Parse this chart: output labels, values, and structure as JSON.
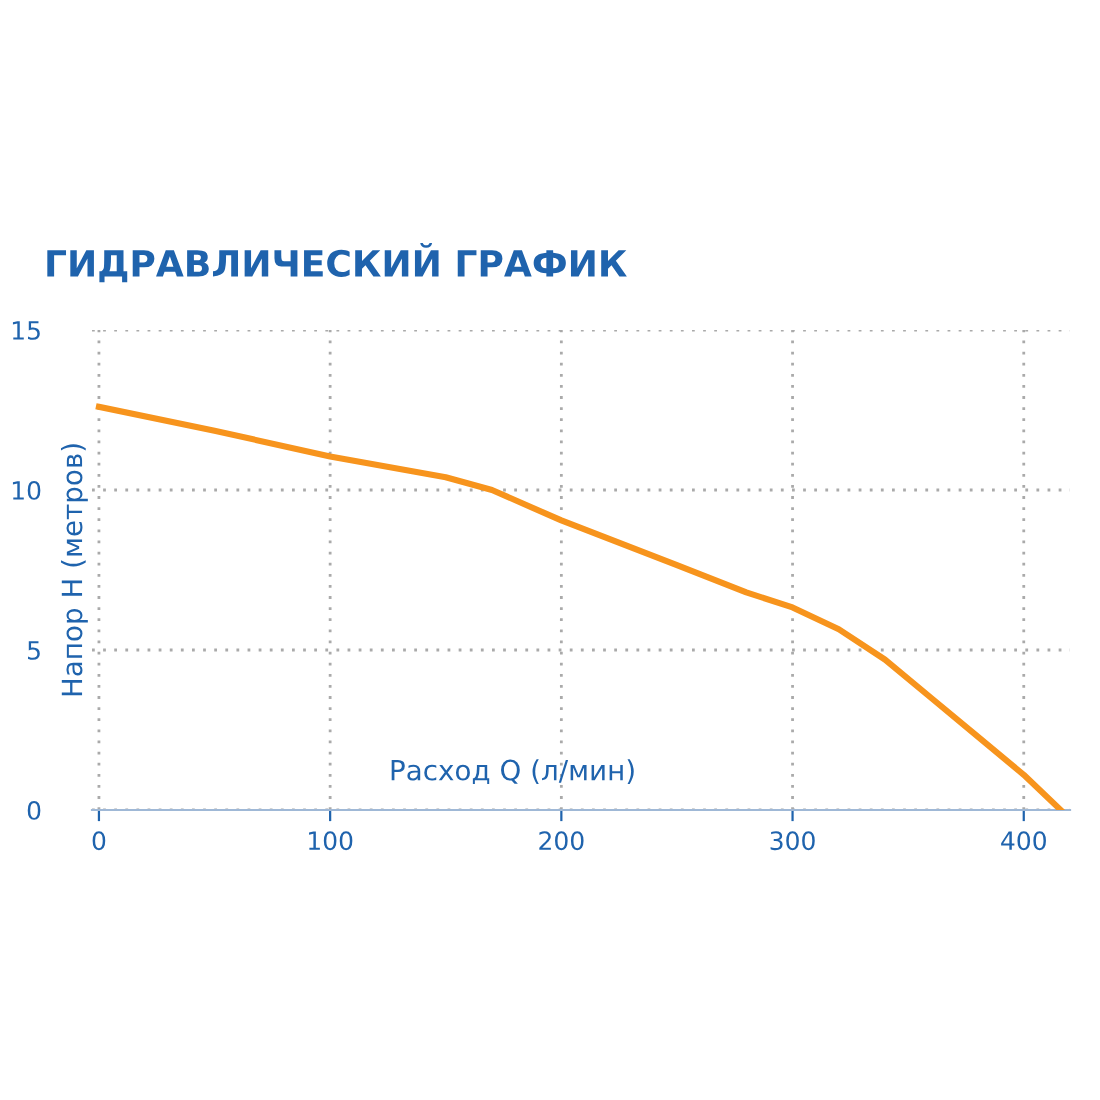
{
  "chart_data": {
    "type": "line",
    "title": "ГИДРАВЛИЧЕСКИЙ ГРАФИК",
    "xlabel": "Расход Q (л/мин)",
    "ylabel": "Напор H (метров)",
    "x": [
      0,
      50,
      100,
      150,
      170,
      200,
      250,
      280,
      300,
      320,
      340,
      360,
      380,
      400,
      416
    ],
    "series": [
      {
        "color": "#f7941d",
        "values": [
          12.6,
          11.85,
          11.05,
          10.4,
          10.0,
          9.05,
          7.65,
          6.8,
          6.33,
          5.65,
          4.7,
          3.5,
          2.3,
          1.1,
          0
        ]
      }
    ],
    "xlim": [
      -3,
      420
    ],
    "ylim": [
      0,
      15
    ],
    "xticks": [
      0,
      100,
      200,
      300,
      400
    ],
    "yticks": [
      0,
      5,
      10,
      15
    ],
    "grid": true,
    "marker": "none",
    "line_style": "solid"
  }
}
